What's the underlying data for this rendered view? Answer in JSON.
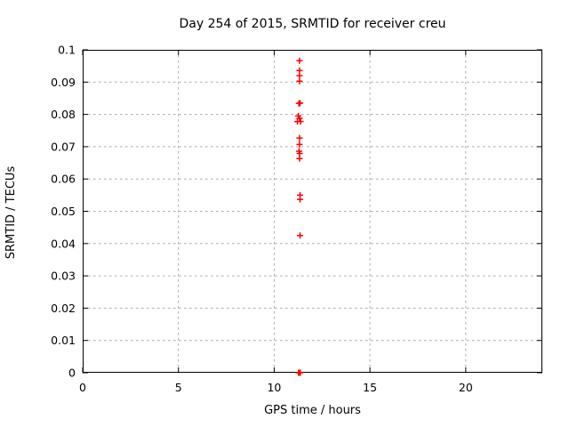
{
  "figure": {
    "title": "Day 254 of 2015, SRMTID for receiver creu",
    "xlabel": "GPS time / hours",
    "ylabel": "SRMTID / TECUs"
  },
  "colors": {
    "background": "#ffffff",
    "frame": "#000000",
    "grid": "#a8a8a8",
    "text": "#000000",
    "marker": "#ff0000"
  },
  "chart_data": {
    "type": "scatter",
    "marker_style": "plus",
    "title": "Day 254 of 2015, SRMTID for receiver creu",
    "xlabel": "GPS time / hours",
    "ylabel": "SRMTID / TECUs",
    "xlim": [
      0,
      24
    ],
    "ylim": [
      0,
      0.1
    ],
    "grid": true,
    "legend": "none",
    "x_ticks": [
      {
        "v": 0,
        "label": "0"
      },
      {
        "v": 5,
        "label": "5"
      },
      {
        "v": 10,
        "label": "10"
      },
      {
        "v": 15,
        "label": "15"
      },
      {
        "v": 20,
        "label": "20"
      }
    ],
    "y_ticks": [
      {
        "v": 0.0,
        "label": "0"
      },
      {
        "v": 0.01,
        "label": "0.01"
      },
      {
        "v": 0.02,
        "label": "0.02"
      },
      {
        "v": 0.03,
        "label": "0.03"
      },
      {
        "v": 0.04,
        "label": "0.04"
      },
      {
        "v": 0.05,
        "label": "0.05"
      },
      {
        "v": 0.06,
        "label": "0.06"
      },
      {
        "v": 0.07,
        "label": "0.07"
      },
      {
        "v": 0.08,
        "label": "0.08"
      },
      {
        "v": 0.09,
        "label": "0.09"
      },
      {
        "v": 0.1,
        "label": "0.1"
      }
    ],
    "series": [
      {
        "name": "SRMTID",
        "color": "#ff0000",
        "points": [
          [
            11.32,
            0.0966
          ],
          [
            11.32,
            0.0936
          ],
          [
            11.32,
            0.092
          ],
          [
            11.32,
            0.0903
          ],
          [
            11.29,
            0.0834
          ],
          [
            11.35,
            0.0835
          ],
          [
            11.26,
            0.0795
          ],
          [
            11.32,
            0.0788
          ],
          [
            11.21,
            0.0778
          ],
          [
            11.38,
            0.0778
          ],
          [
            11.32,
            0.0727
          ],
          [
            11.32,
            0.0707
          ],
          [
            11.3,
            0.0686
          ],
          [
            11.33,
            0.0679
          ],
          [
            11.32,
            0.0663
          ],
          [
            11.35,
            0.055
          ],
          [
            11.35,
            0.0537
          ],
          [
            11.35,
            0.0425
          ],
          [
            11.27,
            0.0
          ],
          [
            11.32,
            0.0
          ],
          [
            11.36,
            0.0
          ]
        ]
      }
    ]
  }
}
